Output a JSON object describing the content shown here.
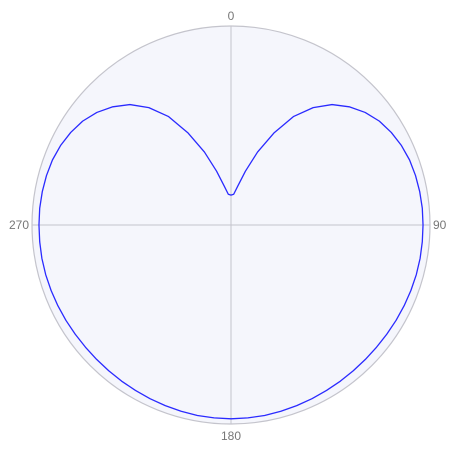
{
  "chart_data": {
    "type": "line",
    "coordinate_system": "polar",
    "angle_direction": "clockwise",
    "angle_zero": "top",
    "angle_ticks": [
      {
        "angle": 0,
        "label": "0"
      },
      {
        "angle": 90,
        "label": "90"
      },
      {
        "angle": 180,
        "label": "180"
      },
      {
        "angle": 270,
        "label": "270"
      }
    ],
    "rlim": [
      0,
      1
    ],
    "grid": true,
    "legend": "none",
    "colors": {
      "series": "#2a2aff",
      "plot_background": "#f5f6fc",
      "grid": "#c4c4cc",
      "tick_text": "#777777"
    },
    "series": [
      {
        "theta": [
          0,
          5,
          10,
          15,
          20,
          25,
          30,
          35,
          40,
          45,
          50,
          55,
          60,
          65,
          70,
          75,
          80,
          85,
          90,
          95,
          100,
          105,
          110,
          115,
          120,
          125,
          130,
          135,
          140,
          145,
          150,
          155,
          160,
          165,
          170,
          175,
          180
        ],
        "r": [
          0.15,
          0.155,
          0.2,
          0.28,
          0.39,
          0.51,
          0.63,
          0.72,
          0.79,
          0.84,
          0.88,
          0.91,
          0.93,
          0.945,
          0.955,
          0.96,
          0.963,
          0.965,
          0.965,
          0.965,
          0.965,
          0.964,
          0.962,
          0.96,
          0.958,
          0.956,
          0.955,
          0.955,
          0.956,
          0.958,
          0.96,
          0.963,
          0.966,
          0.969,
          0.972,
          0.973,
          0.974
        ],
        "symmetric_about_axis": true
      }
    ]
  }
}
